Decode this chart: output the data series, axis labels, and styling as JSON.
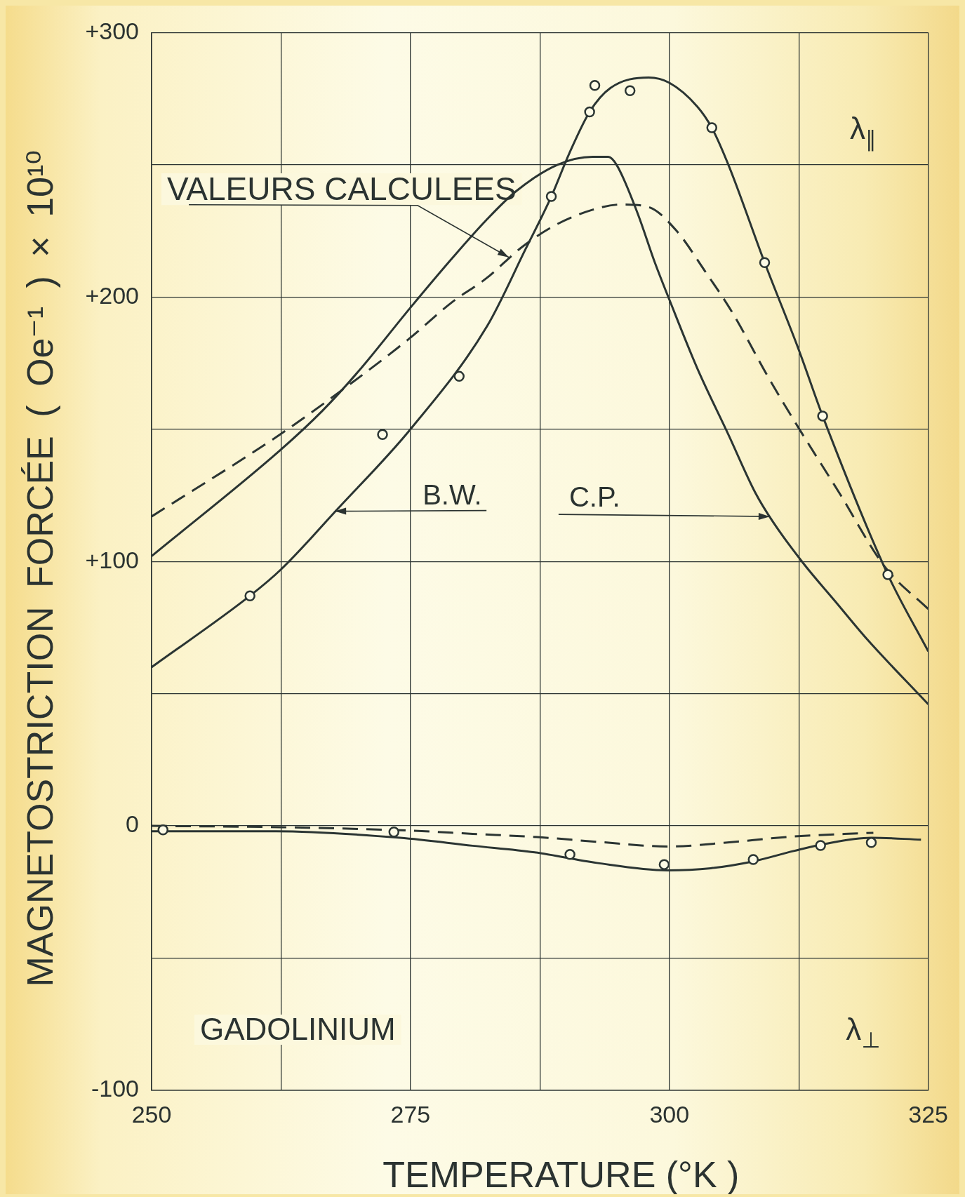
{
  "chart_data": {
    "type": "line",
    "xlabel": "TEMPERATURE (°K )",
    "ylabel": "MAGNETOSTRICTION FORCÉE ( Oe⁻¹ ) × 10¹⁰",
    "xlim": [
      250,
      325
    ],
    "ylim": [
      -100,
      300
    ],
    "xticks": [
      250,
      {
        "value": 262.5,
        "label": null
      },
      275,
      {
        "value": 287.5,
        "label": null
      },
      300,
      {
        "value": 312.5,
        "label": null
      },
      325
    ],
    "yticks": [
      -100,
      {
        "value": -50,
        "label": null
      },
      0,
      {
        "value": 50,
        "label": null
      },
      {
        "value": 100,
        "label": "+100"
      },
      {
        "value": 150,
        "label": null
      },
      {
        "value": 200,
        "label": "+200"
      },
      {
        "value": 250,
        "label": null
      },
      {
        "value": 300,
        "label": "+300"
      }
    ],
    "grid": true,
    "annotations": [
      {
        "text": "VALEURS CALCULEES",
        "x": 284.5,
        "y": 215
      },
      {
        "text": "B.W.",
        "x": 267.7,
        "y": 119
      },
      {
        "text": "C.P.",
        "x": 309.7,
        "y": 117
      },
      "GADOLINIUM",
      "λ$_{∥}$",
      "λ$_{⊥}$"
    ],
    "series": [
      {
        "type": "scatter",
        "color": "#2b3533",
        "marker": "circle",
        "x": [
          259.5,
          272.3,
          279.7,
          288.6,
          292.3,
          292.8,
          296.2,
          304.1,
          309.2,
          314.8,
          321.1
        ],
        "values": [
          87,
          148,
          170,
          238,
          270,
          280,
          278,
          264,
          213,
          155,
          95
        ]
      },
      {
        "color": "#2b3533",
        "line_style": "solid",
        "x": [
          250,
          259.5,
          262.5,
          268,
          275,
          282.4,
          286.1,
          288.6,
          290.3,
          292.3,
          294.3,
          298,
          300,
          302.7,
          304.1,
          305.7,
          309.2,
          312.5,
          314.8,
          321.1,
          325
        ],
        "values": [
          60,
          87,
          97,
          120,
          150,
          189,
          218,
          238,
          254,
          270,
          279,
          283,
          281,
          272,
          264,
          250,
          213,
          180,
          155,
          95,
          66
        ]
      },
      {
        "color": "#2b3533",
        "line_style": "solid",
        "x": [
          250,
          262.4,
          266.5,
          270,
          275,
          279.1,
          282.3,
          285.2,
          289.2,
          292.6,
          294.1,
          294.9,
          296.9,
          298.6,
          300,
          302.7,
          305.7,
          308.3,
          310,
          313,
          316,
          319,
          325
        ],
        "values": [
          102,
          142,
          157,
          172,
          196,
          215,
          229,
          240,
          250,
          253,
          253,
          250,
          232,
          213,
          199,
          173,
          148,
          126,
          115,
          99,
          85,
          71,
          46
        ]
      },
      {
        "color": "#2b3533",
        "line_style": "dashed",
        "x": [
          250,
          262.4,
          268.8,
          274.8,
          279,
          282.3,
          285.8,
          288.9,
          292.6,
          295.4,
          298,
          300.7,
          303.4,
          306.1,
          309.5,
          312.4,
          316.4,
          320.8,
          325
        ],
        "values": [
          117,
          148,
          166,
          184,
          198,
          207,
          219,
          227,
          233,
          235,
          234,
          225,
          210,
          194,
          170,
          151,
          126,
          98,
          82
        ]
      },
      {
        "type": "scatter",
        "color": "#2b3533",
        "marker": "circle",
        "x": [
          251.1,
          273.4,
          290.4,
          299.5,
          308.1,
          314.6,
          319.5
        ],
        "values": [
          -1.5,
          -2.3,
          -10.8,
          -14.6,
          -12.7,
          -7.4,
          -6.3
        ]
      },
      {
        "color": "#2b3533",
        "line_style": "solid",
        "x": [
          250,
          262,
          274,
          281,
          287,
          293,
          299.8,
          304,
          308,
          312,
          315,
          319.5,
          324.3
        ],
        "values": [
          -2,
          -2,
          -4.5,
          -7.5,
          -10,
          -14,
          -16.8,
          -16,
          -13.5,
          -9.5,
          -6.8,
          -4.5,
          -5.2
        ]
      },
      {
        "color": "#2b3533",
        "line_style": "dashed",
        "x": [
          250,
          262.5,
          275,
          281,
          287.5,
          293,
          300,
          305,
          312,
          319.7
        ],
        "values": [
          0,
          -0.5,
          -1.8,
          -3,
          -4.3,
          -6,
          -7.8,
          -6.5,
          -4,
          -2.6
        ]
      }
    ]
  }
}
